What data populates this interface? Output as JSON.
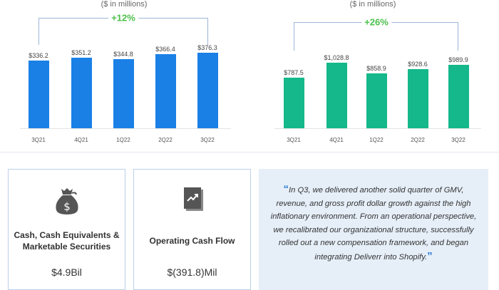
{
  "chart_data": [
    {
      "type": "bar",
      "subtitle": "($ in millions)",
      "growth_label": "+12%",
      "categories": [
        "3Q21",
        "4Q21",
        "1Q22",
        "2Q22",
        "3Q22"
      ],
      "values": [
        336.2,
        351.2,
        344.8,
        366.4,
        376.3
      ],
      "data_labels": [
        "$336.2",
        "$351.2",
        "$344.8",
        "$366.4",
        "$376.3"
      ],
      "color": "#1a80e6",
      "grid": false
    },
    {
      "type": "bar",
      "subtitle": "($ in millions)",
      "growth_label": "+26%",
      "categories": [
        "3Q21",
        "4Q21",
        "1Q22",
        "2Q22",
        "3Q22"
      ],
      "values": [
        787.5,
        1028.8,
        858.9,
        928.6,
        989.9
      ],
      "data_labels": [
        "$787.5",
        "$1,028.8",
        "$858.9",
        "$928.6",
        "$989.9"
      ],
      "color": "#14b88a",
      "grid": false
    }
  ],
  "cards": [
    {
      "icon": "money-bag-icon",
      "title": "Cash, Cash Equivalents & Marketable Securities",
      "value": "$4.9Bil"
    },
    {
      "icon": "chart-document-icon",
      "title": "Operating Cash Flow",
      "value": "$(391.8)Mil"
    }
  ],
  "quote": {
    "open": "“",
    "text": "In Q3, we delivered another solid quarter of GMV, revenue, and gross profit dollar growth against the high inflationary environment. From an operational perspective, we recalibrated our organizational structure, successfully rolled out a new compensation framework, and began integrating Deliverr into Shopify.",
    "close": "”",
    "accent": "#2b7bd6",
    "background": "#e6eff8"
  }
}
